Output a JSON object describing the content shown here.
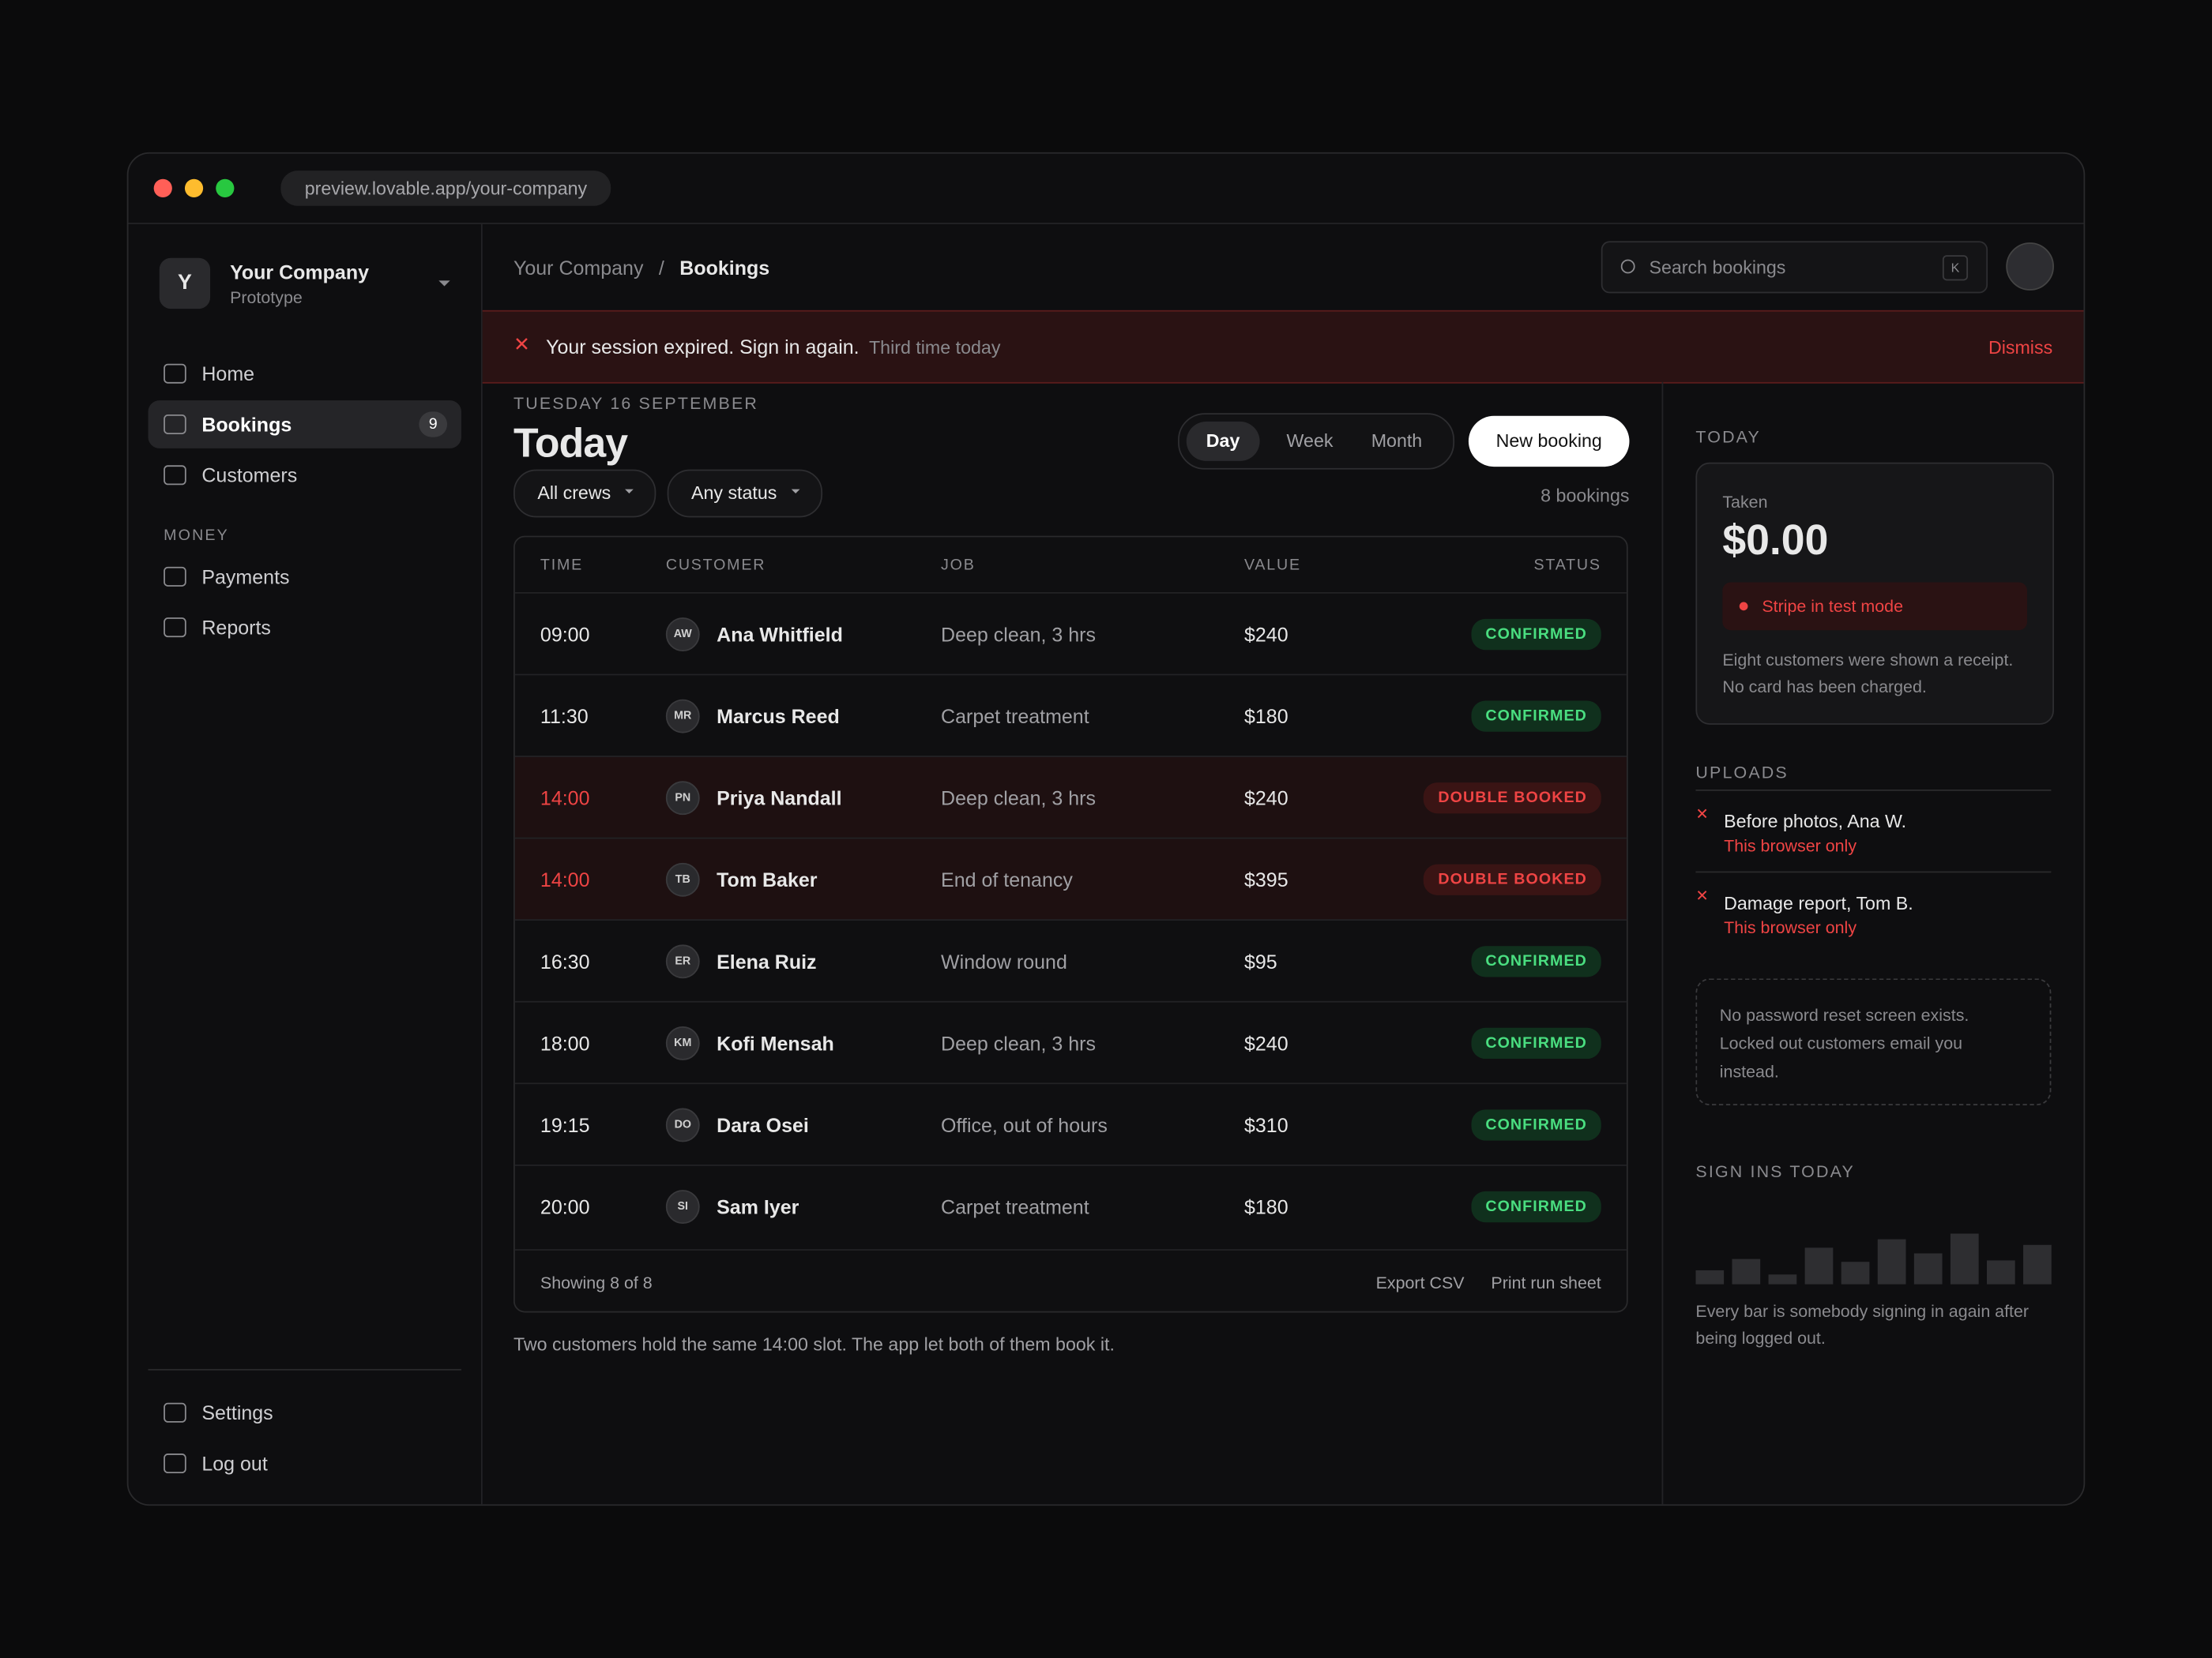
{
  "browser": {
    "url": "preview.lovable.app/your-company"
  },
  "sidebar": {
    "initial": "Y",
    "company": "Your Company",
    "subtitle": "Prototype",
    "nav": [
      {
        "label": "Home"
      },
      {
        "label": "Bookings",
        "badge": "9"
      },
      {
        "label": "Customers"
      }
    ],
    "section": "MONEY",
    "money": [
      {
        "label": "Payments"
      },
      {
        "label": "Reports"
      }
    ],
    "footer": [
      {
        "label": "Settings"
      },
      {
        "label": "Log out"
      }
    ]
  },
  "header": {
    "breadcrumb": [
      "Your Company",
      "Bookings"
    ],
    "search": "Search bookings",
    "shortcut": "K"
  },
  "alert": {
    "message": "Your session expired. Sign in again.",
    "detail": "Third time today",
    "action": "Dismiss"
  },
  "main": {
    "date": "TUESDAY 16 SEPTEMBER",
    "title": "Today",
    "views": [
      "Day",
      "Week",
      "Month"
    ],
    "new_booking": "New booking",
    "filters": [
      "All crews",
      "Any status"
    ],
    "count": "8 bookings"
  },
  "table": {
    "columns": [
      "TIME",
      "CUSTOMER",
      "JOB",
      "VALUE",
      "STATUS"
    ],
    "rows": [
      {
        "time": "09:00",
        "initials": "AW",
        "customer": "Ana Whitfield",
        "job": "Deep clean, 3 hrs",
        "value": "$240",
        "status": "CONFIRMED",
        "tone": "success"
      },
      {
        "time": "11:30",
        "initials": "MR",
        "customer": "Marcus Reed",
        "job": "Carpet treatment",
        "value": "$180",
        "status": "CONFIRMED",
        "tone": "success"
      },
      {
        "time": "14:00",
        "initials": "PN",
        "customer": "Priya Nandall",
        "job": "Deep clean, 3 hrs",
        "value": "$240",
        "status": "DOUBLE BOOKED",
        "tone": "danger"
      },
      {
        "time": "14:00",
        "initials": "TB",
        "customer": "Tom Baker",
        "job": "End of tenancy",
        "value": "$395",
        "status": "DOUBLE BOOKED",
        "tone": "danger"
      },
      {
        "time": "16:30",
        "initials": "ER",
        "customer": "Elena Ruiz",
        "job": "Window round",
        "value": "$95",
        "status": "CONFIRMED",
        "tone": "success"
      },
      {
        "time": "18:00",
        "initials": "KM",
        "customer": "Kofi Mensah",
        "job": "Deep clean, 3 hrs",
        "value": "$240",
        "status": "CONFIRMED",
        "tone": "success"
      },
      {
        "time": "19:15",
        "initials": "DO",
        "customer": "Dara Osei",
        "job": "Office, out of hours",
        "value": "$310",
        "status": "CONFIRMED",
        "tone": "success"
      },
      {
        "time": "20:00",
        "initials": "SI",
        "customer": "Sam Iyer",
        "job": "Carpet treatment",
        "value": "$180",
        "status": "CONFIRMED",
        "tone": "success"
      }
    ],
    "showing": "Showing 8 of 8",
    "actions": [
      "Export CSV",
      "Print run sheet"
    ]
  },
  "note": "Two customers hold the same 14:00 slot. The app let both of them book it.",
  "panel": {
    "heading": "TODAY",
    "taken_label": "Taken",
    "taken": "$0.00",
    "warning": "Stripe in test mode",
    "receipt": "Eight customers were shown a receipt. No card has been charged.",
    "uploads_heading": "UPLOADS",
    "uploads": [
      {
        "title": "Before photos, Ana W.",
        "note": "This browser only"
      },
      {
        "title": "Damage report, Tom B.",
        "note": "This browser only"
      }
    ],
    "notice": "No password reset screen exists. Locked out customers email you instead.",
    "signins_heading": "SIGN INS TODAY",
    "signins": [
      10,
      18,
      7,
      26,
      16,
      32,
      22,
      36,
      17,
      28
    ],
    "signins_caption": "Every bar is somebody signing in again after being logged out."
  }
}
